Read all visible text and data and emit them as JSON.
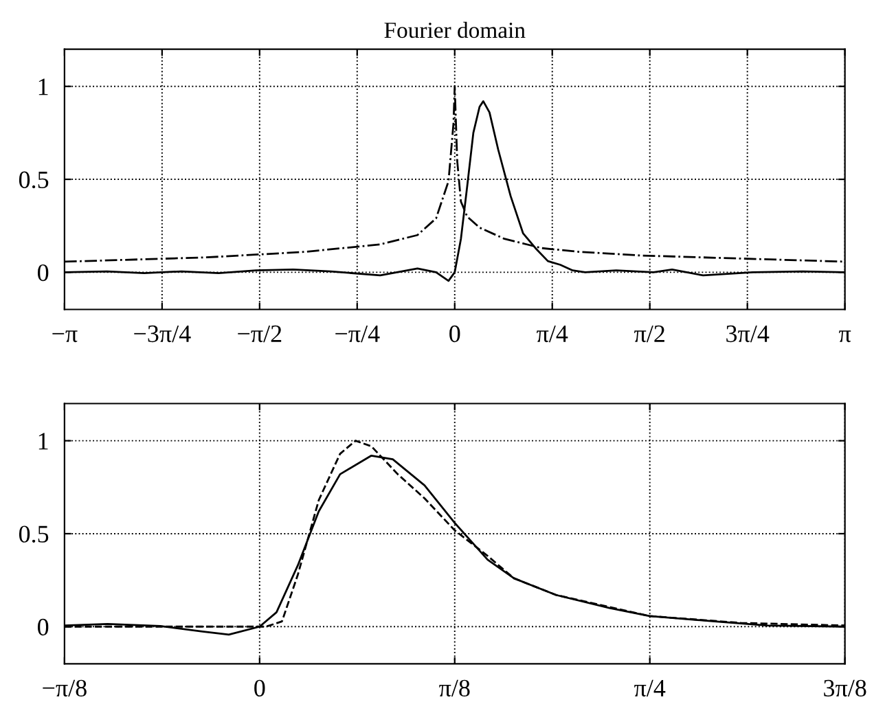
{
  "chart_data": [
    {
      "type": "line",
      "title": "Fourier domain",
      "xlim": [
        -3.14159,
        3.14159
      ],
      "ylim": [
        -0.2,
        1.2
      ],
      "xticks": [
        {
          "value": -3.14159,
          "label": "−π"
        },
        {
          "value": -2.35619,
          "label": "−3π/4"
        },
        {
          "value": -1.5708,
          "label": "−π/2"
        },
        {
          "value": -0.7854,
          "label": "−π/4"
        },
        0,
        {
          "value": 0.7854,
          "label": "π/4"
        },
        {
          "value": 1.5708,
          "label": "π/2"
        },
        {
          "value": 2.35619,
          "label": "3π/4"
        },
        {
          "value": 3.14159,
          "label": "π"
        }
      ],
      "yticks": [
        0,
        0.5,
        1
      ],
      "grid": true,
      "legend": false,
      "series": [
        {
          "color": "#000000",
          "line_style": "solid",
          "x": [
            -3.14159,
            -2.8,
            -2.5,
            -2.2,
            -1.9,
            -1.6,
            -1.3,
            -1.0,
            -0.6,
            -0.3,
            -0.15,
            -0.05,
            0,
            0.05,
            0.1,
            0.15,
            0.2,
            0.23,
            0.28,
            0.35,
            0.45,
            0.55,
            0.65,
            0.75,
            0.85,
            0.95,
            1.05,
            1.3,
            1.6,
            1.75,
            2.0,
            2.4,
            2.8,
            3.14159
          ],
          "values": [
            0,
            0.005,
            -0.005,
            0.005,
            -0.005,
            0.01,
            0.015,
            0.005,
            -0.017,
            0.02,
            0,
            -0.046,
            0,
            0.18,
            0.46,
            0.75,
            0.89,
            0.92,
            0.86,
            0.66,
            0.41,
            0.21,
            0.13,
            0.06,
            0.04,
            0.01,
            0,
            0.01,
            0,
            0.015,
            -0.017,
            0,
            0.005,
            0
          ]
        },
        {
          "color": "#000000",
          "line_style": "dashdot",
          "x": [
            -3.14159,
            -2.0,
            -1.2,
            -0.6,
            -0.3,
            -0.15,
            -0.05,
            -0.01,
            0,
            0.02,
            0.05,
            0.1,
            0.2,
            0.4,
            0.7,
            1.0,
            1.5,
            2.0,
            3.14159
          ],
          "values": [
            0.057,
            0.08,
            0.11,
            0.15,
            0.2,
            0.29,
            0.49,
            0.8,
            1.0,
            0.6,
            0.38,
            0.3,
            0.24,
            0.18,
            0.13,
            0.11,
            0.09,
            0.08,
            0.057
          ]
        }
      ]
    },
    {
      "type": "line",
      "xlim": [
        -0.3927,
        1.1781
      ],
      "ylim": [
        -0.2,
        1.2
      ],
      "xticks": [
        {
          "value": -0.3927,
          "label": "−π/8"
        },
        0,
        {
          "value": 0.3927,
          "label": "π/8"
        },
        {
          "value": 0.7854,
          "label": "π/4"
        },
        {
          "value": 1.1781,
          "label": "3π/8"
        }
      ],
      "yticks": [
        0,
        0.5,
        1
      ],
      "grid": true,
      "legend": false,
      "series": [
        {
          "color": "#000000",
          "line_style": "solid",
          "x": [
            -0.3927,
            -0.306,
            -0.2,
            -0.115,
            -0.062,
            0,
            0.034,
            0.077,
            0.119,
            0.162,
            0.225,
            0.268,
            0.332,
            0.392,
            0.459,
            0.512,
            0.597,
            0.704,
            0.785,
            0.916,
            1.022,
            1.1781
          ],
          "values": [
            0.006,
            0.014,
            0.003,
            -0.026,
            -0.043,
            0,
            0.077,
            0.33,
            0.62,
            0.82,
            0.92,
            0.9,
            0.76,
            0.56,
            0.36,
            0.26,
            0.17,
            0.1,
            0.057,
            0.028,
            0.006,
            0
          ]
        },
        {
          "color": "#000000",
          "line_style": "dashed",
          "x": [
            -0.3927,
            0.013,
            0.045,
            0.077,
            0.119,
            0.162,
            0.193,
            0.225,
            0.278,
            0.332,
            0.392,
            0.459,
            0.512,
            0.597,
            0.785,
            0.969,
            1.1781
          ],
          "values": [
            0,
            0,
            0.028,
            0.28,
            0.68,
            0.93,
            1.0,
            0.97,
            0.82,
            0.69,
            0.52,
            0.38,
            0.26,
            0.17,
            0.057,
            0.02,
            0.006
          ]
        }
      ]
    }
  ]
}
